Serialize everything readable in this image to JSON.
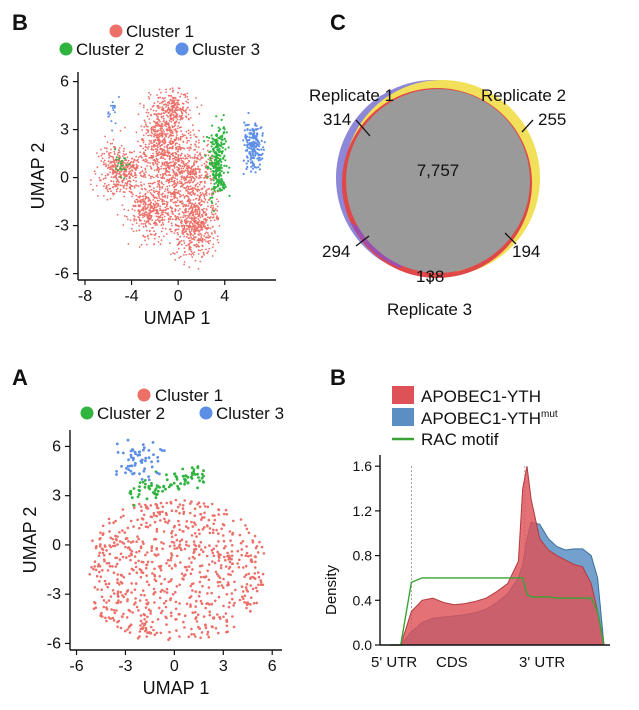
{
  "panels": {
    "top_left": {
      "letter": "B",
      "legend": [
        "Cluster 1",
        "Cluster 2",
        "Cluster 3"
      ]
    },
    "top_right": {
      "letter": "C",
      "set_labels": [
        "Replicate 1",
        "Replicate 2",
        "Replicate 3"
      ],
      "center_value": "7,757",
      "numbers": [
        "314",
        "255",
        "294",
        "194",
        "138"
      ]
    },
    "bottom_left": {
      "letter": "A",
      "legend": [
        "Cluster 1",
        "Cluster 2",
        "Cluster 3"
      ]
    },
    "bottom_right": {
      "letter": "B",
      "legend": [
        "APOBEC1-YTH",
        "APOBEC1-YTH",
        "mut",
        "RAC motif"
      ]
    }
  },
  "colors": {
    "cluster1": "#ec6f68",
    "cluster2": "#2fb43f",
    "cluster3": "#5d8ee6",
    "rep1": "#8d87d8",
    "rep2": "#f2e05a",
    "rep3": "#e04747",
    "overlap": "#9a9a9a",
    "apobec": "#dd5257",
    "apobec_mut": "#5b8fc4",
    "rac": "#3aa335"
  },
  "chart_data": [
    {
      "type": "scatter",
      "xlabel": "UMAP 1",
      "ylabel": "UMAP 2",
      "xlim": [
        -8.6,
        8.4
      ],
      "ylim": [
        -6.4,
        6.6
      ],
      "xticks": [
        -8,
        -4,
        0,
        4
      ],
      "yticks": [
        -6,
        -3,
        0,
        3,
        6
      ],
      "series": [
        {
          "name": "Cluster 1",
          "color": "#ec6f68",
          "point_count": 2600,
          "approx_extent": {
            "x": [
              -7.5,
              3.5
            ],
            "y": [
              -5.6,
              5.6
            ]
          }
        },
        {
          "name": "Cluster 2",
          "color": "#2fb43f",
          "point_count": 260,
          "approx_extent": {
            "x": [
              2.4,
              4.8
            ],
            "y": [
              -1.6,
              3.6
            ]
          }
        },
        {
          "name": "Cluster 3",
          "color": "#5d8ee6",
          "point_count": 170,
          "approx_extent": {
            "x": [
              5.6,
              7.3
            ],
            "y": [
              0.5,
              3.6
            ]
          }
        }
      ],
      "legend": "top"
    },
    {
      "type": "venn",
      "sets": [
        "Replicate 1",
        "Replicate 2",
        "Replicate 3"
      ],
      "intersection_all": 7757,
      "region_values": [
        314,
        255,
        294,
        194,
        138
      ]
    },
    {
      "type": "scatter",
      "xlabel": "UMAP 1",
      "ylabel": "UMAP 2",
      "xlim": [
        -6.4,
        6.6
      ],
      "ylim": [
        -6.4,
        7.0
      ],
      "xticks": [
        -6,
        -3,
        0,
        3,
        6
      ],
      "yticks": [
        -6,
        -3,
        0,
        3,
        6
      ],
      "series": [
        {
          "name": "Cluster 1",
          "color": "#ec6f68",
          "point_count": 750,
          "approx_extent": {
            "x": [
              -5.2,
              5.6
            ],
            "y": [
              -5.8,
              2.8
            ]
          }
        },
        {
          "name": "Cluster 2",
          "color": "#2fb43f",
          "point_count": 90,
          "approx_extent": {
            "x": [
              -2.8,
              1.8
            ],
            "y": [
              2.9,
              4.8
            ]
          }
        },
        {
          "name": "Cluster 3",
          "color": "#5d8ee6",
          "point_count": 60,
          "approx_extent": {
            "x": [
              -3.6,
              -1.0
            ],
            "y": [
              4.0,
              6.4
            ]
          }
        }
      ],
      "legend": "top"
    },
    {
      "type": "area",
      "ylabel": "Density",
      "ylim": [
        0,
        1.7
      ],
      "yticks": [
        0.0,
        0.4,
        0.8,
        1.2,
        1.6
      ],
      "region_labels": [
        "5' UTR",
        "CDS",
        "3' UTR"
      ],
      "x": [
        0.0,
        0.05,
        0.1,
        0.15,
        0.2,
        0.25,
        0.3,
        0.35,
        0.4,
        0.45,
        0.5,
        0.55,
        0.6,
        0.62,
        0.64,
        0.66,
        0.7,
        0.74,
        0.78,
        0.82,
        0.86,
        0.9,
        0.94,
        0.97,
        1.0
      ],
      "series": [
        {
          "name": "APOBEC1-YTH",
          "color": "#dd5257",
          "values": [
            0.0,
            0.0,
            0.3,
            0.4,
            0.42,
            0.38,
            0.36,
            0.37,
            0.39,
            0.42,
            0.48,
            0.55,
            0.75,
            1.4,
            1.6,
            1.3,
            0.95,
            0.85,
            0.8,
            0.76,
            0.72,
            0.7,
            0.55,
            0.3,
            0.0
          ]
        },
        {
          "name": "APOBEC1-YTH mut",
          "color": "#5b8fc4",
          "values": [
            0.0,
            0.0,
            0.12,
            0.2,
            0.24,
            0.25,
            0.26,
            0.27,
            0.29,
            0.32,
            0.38,
            0.46,
            0.6,
            0.72,
            0.95,
            1.1,
            1.08,
            0.95,
            0.88,
            0.85,
            0.86,
            0.86,
            0.8,
            0.6,
            0.0
          ]
        },
        {
          "name": "RAC motif",
          "color": "#3aa335",
          "values": [
            0.0,
            0.0,
            0.56,
            0.6,
            0.6,
            0.6,
            0.6,
            0.6,
            0.6,
            0.6,
            0.6,
            0.6,
            0.6,
            0.6,
            0.45,
            0.43,
            0.43,
            0.43,
            0.42,
            0.42,
            0.42,
            0.42,
            0.42,
            0.3,
            0.0
          ]
        }
      ],
      "legend": "top"
    }
  ]
}
